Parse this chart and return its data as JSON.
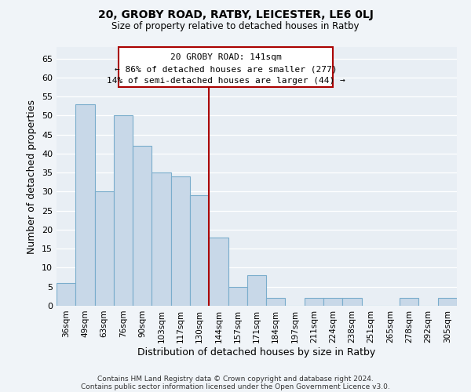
{
  "title": "20, GROBY ROAD, RATBY, LEICESTER, LE6 0LJ",
  "subtitle": "Size of property relative to detached houses in Ratby",
  "xlabel": "Distribution of detached houses by size in Ratby",
  "ylabel": "Number of detached properties",
  "footer_line1": "Contains HM Land Registry data © Crown copyright and database right 2024.",
  "footer_line2": "Contains public sector information licensed under the Open Government Licence v3.0.",
  "bin_labels": [
    "36sqm",
    "49sqm",
    "63sqm",
    "76sqm",
    "90sqm",
    "103sqm",
    "117sqm",
    "130sqm",
    "144sqm",
    "157sqm",
    "171sqm",
    "184sqm",
    "197sqm",
    "211sqm",
    "224sqm",
    "238sqm",
    "251sqm",
    "265sqm",
    "278sqm",
    "292sqm",
    "305sqm"
  ],
  "bar_heights": [
    6,
    53,
    30,
    50,
    42,
    35,
    34,
    29,
    18,
    5,
    8,
    2,
    0,
    2,
    2,
    2,
    0,
    0,
    2,
    0,
    2
  ],
  "bar_color": "#c8d8e8",
  "bar_edgecolor": "#7aadcc",
  "highlight_index": 8,
  "highlight_color": "#aa0000",
  "ylim": [
    0,
    68
  ],
  "yticks": [
    0,
    5,
    10,
    15,
    20,
    25,
    30,
    35,
    40,
    45,
    50,
    55,
    60,
    65
  ],
  "annotation_title": "20 GROBY ROAD: 141sqm",
  "annotation_line1": "← 86% of detached houses are smaller (277)",
  "annotation_line2": "14% of semi-detached houses are larger (44) →",
  "bg_color": "#f0f4f8",
  "plot_bg_color": "#e8eef4",
  "grid_color": "#ffffff"
}
